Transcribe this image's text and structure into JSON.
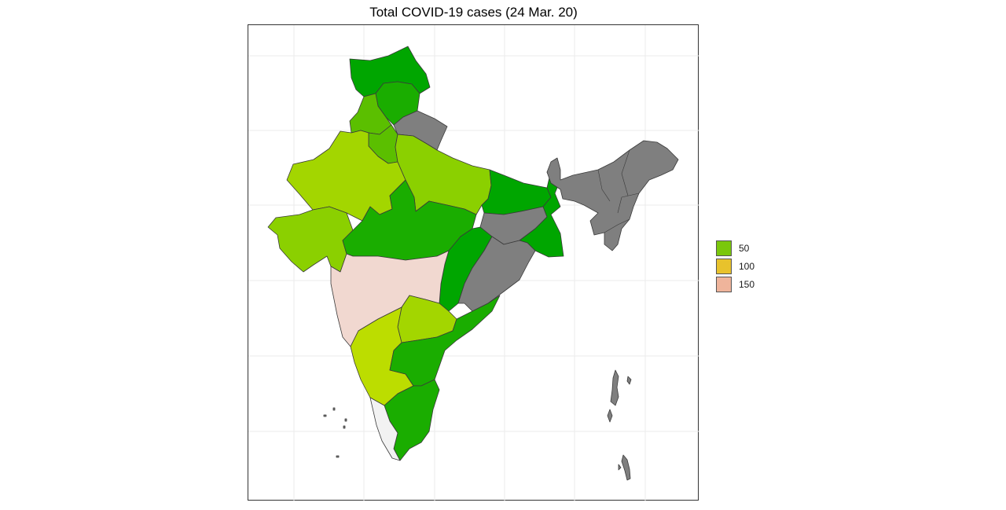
{
  "title": "Total COVID-19 cases (24 Mar. 20)",
  "legend": {
    "items": [
      {
        "label": "50",
        "color": "#7ac70c"
      },
      {
        "label": "100",
        "color": "#e8c22c"
      },
      {
        "label": "150",
        "color": "#efb49b"
      }
    ]
  },
  "colors": {
    "no_data": "#7f7f7f",
    "dark_green": "#00a600",
    "green": "#1aad00",
    "mid_green": "#5bbf00",
    "light_green": "#8bd000",
    "yellow_green": "#a3d600",
    "lime": "#bcdd00",
    "pale_pink": "#f1d8d0",
    "off_white": "#f2f2f2",
    "border": "#3a3a3a",
    "grid": "#ebebeb"
  },
  "regions": [
    {
      "id": "jammu-kashmir",
      "fill": "dark_green"
    },
    {
      "id": "ladakh-uttarakhand-north",
      "fill": "green"
    },
    {
      "id": "himachal-punjab",
      "fill": "mid_green"
    },
    {
      "id": "haryana-delhi",
      "fill": "mid_green"
    },
    {
      "id": "uttarakhand",
      "fill": "no_data"
    },
    {
      "id": "rajasthan",
      "fill": "yellow_green"
    },
    {
      "id": "uttar-pradesh",
      "fill": "light_green"
    },
    {
      "id": "gujarat",
      "fill": "light_green"
    },
    {
      "id": "madhya-pradesh",
      "fill": "green"
    },
    {
      "id": "bihar",
      "fill": "dark_green"
    },
    {
      "id": "jharkhand",
      "fill": "no_data"
    },
    {
      "id": "west-bengal",
      "fill": "dark_green"
    },
    {
      "id": "chhattisgarh",
      "fill": "dark_green"
    },
    {
      "id": "odisha",
      "fill": "no_data"
    },
    {
      "id": "maharashtra",
      "fill": "pale_pink"
    },
    {
      "id": "telangana",
      "fill": "yellow_green"
    },
    {
      "id": "karnataka",
      "fill": "lime"
    },
    {
      "id": "andhra-pradesh",
      "fill": "green"
    },
    {
      "id": "tamil-nadu",
      "fill": "green"
    },
    {
      "id": "kerala",
      "fill": "off_white"
    },
    {
      "id": "northeast",
      "fill": "no_data"
    },
    {
      "id": "andaman-nicobar",
      "fill": "no_data"
    }
  ]
}
